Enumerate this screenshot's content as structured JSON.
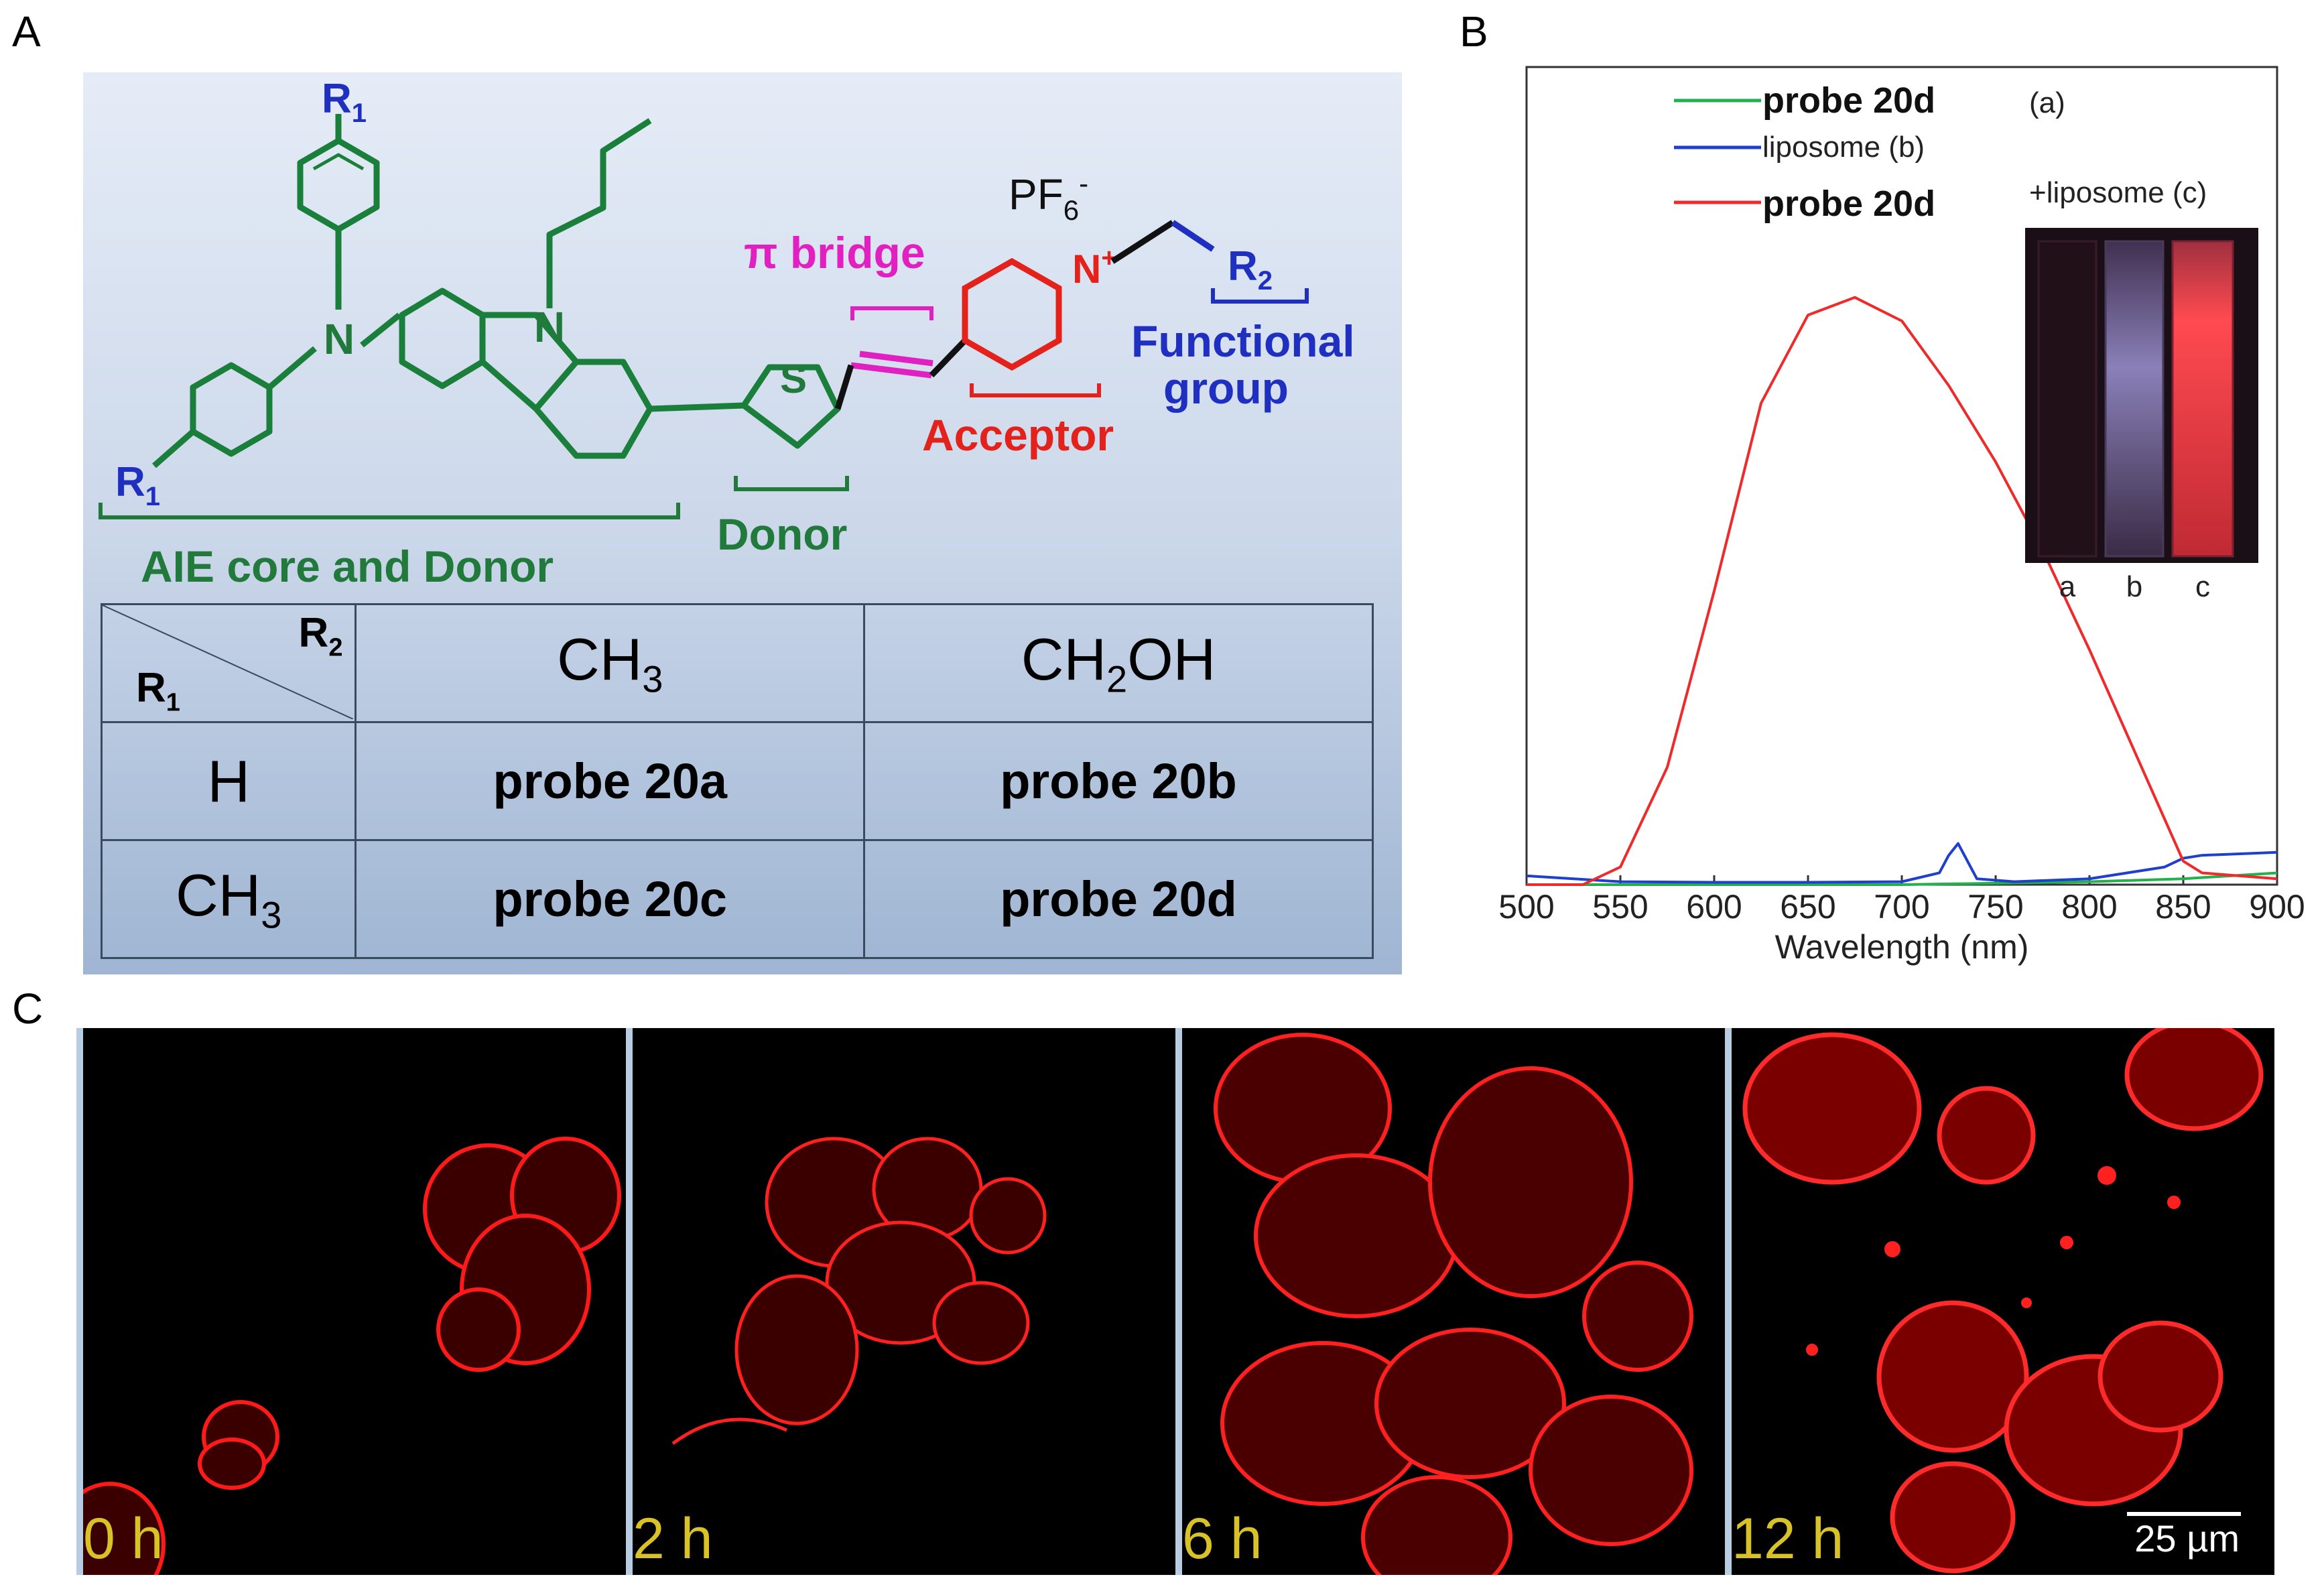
{
  "panel_labels": {
    "a": "A",
    "b": "B",
    "c": "C"
  },
  "structure": {
    "r1_label": "R",
    "r1_sub": "1",
    "r2_label": "R",
    "r2_sub": "2",
    "n_label": "N",
    "s_label": "S",
    "nplus_label": "N",
    "nplus_charge": "+",
    "pf6_label": "PF",
    "pf6_sub": "6",
    "pf6_charge": "-",
    "pi_bridge": "π bridge",
    "acceptor": "Acceptor",
    "functional_group_line1": "Functional",
    "functional_group_line2": "group",
    "donor": "Donor",
    "aie_core": "AIE core and Donor"
  },
  "table": {
    "corner_r2": "R",
    "corner_r2_sub": "2",
    "corner_r1": "R",
    "corner_r1_sub": "1",
    "col1_pre": "CH",
    "col1_sub": "3",
    "col1_post": "",
    "col2_pre": "CH",
    "col2_sub": "2",
    "col2_post": "OH",
    "row1": "H",
    "row2_pre": "CH",
    "row2_sub": "3",
    "cells": [
      "probe 20a",
      "probe 20b",
      "probe 20c",
      "probe 20d"
    ]
  },
  "colors": {
    "green_series": "#22b14c",
    "blue_series": "#1f3fcf",
    "red_series": "#ee2a2a",
    "time_label": "#d8c228"
  },
  "chart_data": {
    "type": "line",
    "xlabel": "Wavelength (nm)",
    "ylabel": "",
    "xlim": [
      500,
      900
    ],
    "xticks": [
      500,
      550,
      600,
      650,
      700,
      750,
      800,
      850,
      900
    ],
    "ylim": [
      0,
      1.05
    ],
    "legend_placement": "top-left",
    "series": [
      {
        "name": "probe 20d",
        "color": "#22b14c",
        "x": [
          500,
          600,
          700,
          800,
          850,
          900
        ],
        "y": [
          0.0,
          0.0,
          0.0,
          0.005,
          0.01,
          0.02
        ]
      },
      {
        "name": "liposome (b)",
        "color": "#1f3fcf",
        "x": [
          500,
          550,
          600,
          650,
          700,
          720,
          725,
          730,
          735,
          740,
          760,
          800,
          840,
          850,
          860,
          900
        ],
        "y": [
          0.015,
          0.005,
          0.004,
          0.004,
          0.005,
          0.02,
          0.05,
          0.07,
          0.04,
          0.01,
          0.005,
          0.01,
          0.03,
          0.045,
          0.05,
          0.055
        ]
      },
      {
        "name": "probe 20d",
        "name_extra": "+liposome (c)",
        "color": "#ee2a2a",
        "x": [
          500,
          530,
          550,
          575,
          600,
          625,
          650,
          675,
          700,
          725,
          750,
          775,
          800,
          825,
          850,
          860,
          900
        ],
        "y": [
          0.0,
          0.0,
          0.03,
          0.2,
          0.5,
          0.82,
          0.97,
          1.0,
          0.96,
          0.85,
          0.72,
          0.57,
          0.4,
          0.22,
          0.04,
          0.02,
          0.01
        ]
      }
    ],
    "inset": {
      "title": "(a)",
      "caption": "+liposome (c)",
      "tubes": [
        "a",
        "b",
        "c"
      ]
    }
  },
  "microscopy": {
    "frames": [
      {
        "time": "0 h"
      },
      {
        "time": "2 h"
      },
      {
        "time": "6 h"
      },
      {
        "time": "12 h"
      }
    ],
    "scale_bar": "25 µm"
  }
}
